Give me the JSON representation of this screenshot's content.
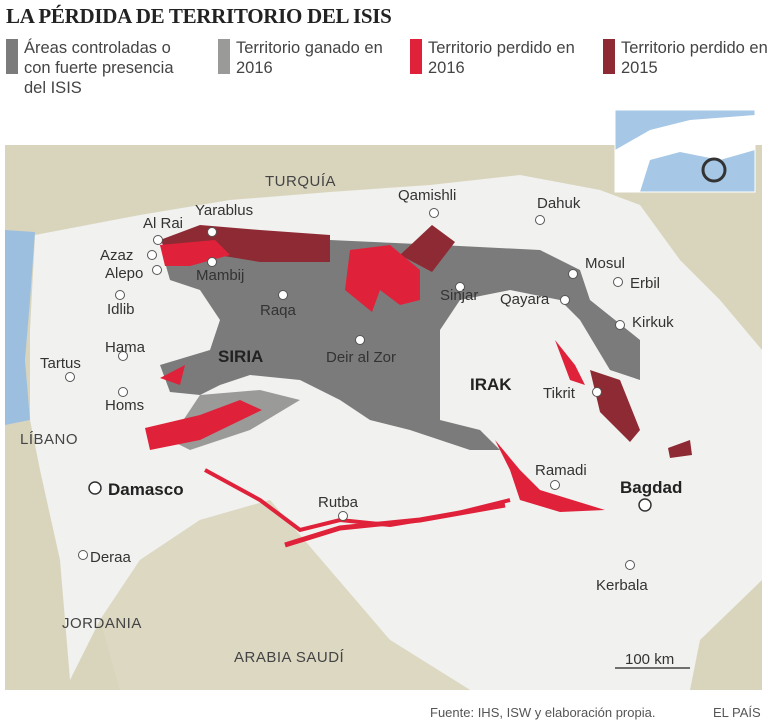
{
  "title": "LA PÉRDIDA DE TERRITORIO DEL ISIS",
  "legend": [
    {
      "label": "Áreas controladas o con fuerte presencia del ISIS",
      "color": "#7b7b7b"
    },
    {
      "label": "Territorio ganado en 2016",
      "color": "#9a9a98"
    },
    {
      "label": "Territorio perdido en 2016",
      "color": "#e0213a"
    },
    {
      "label": "Territorio perdido en 2015",
      "color": "#8e2a33"
    }
  ],
  "countries": [
    "TURQUÍA",
    "SIRIA",
    "IRAK",
    "LÍBANO",
    "JORDANIA",
    "ARABIA SAUDÍ"
  ],
  "cities": [
    "Yarablus",
    "Al Rai",
    "Qamishli",
    "Dahuk",
    "Azaz",
    "Alepo",
    "Mambij",
    "Mosul",
    "Erbil",
    "Idlib",
    "Raqa",
    "Sinjar",
    "Qayara",
    "Kirkuk",
    "Hama",
    "Tartus",
    "Deir al Zor",
    "Tikrit",
    "Homs",
    "Ramadi",
    "Rutba",
    "Kerbala",
    "Deraa"
  ],
  "capitals": [
    "Damasco",
    "Bagdad"
  ],
  "scale": "100 km",
  "source": "Fuente: IHS, ISW y elaboración propia.",
  "credit": "EL PAÍS"
}
